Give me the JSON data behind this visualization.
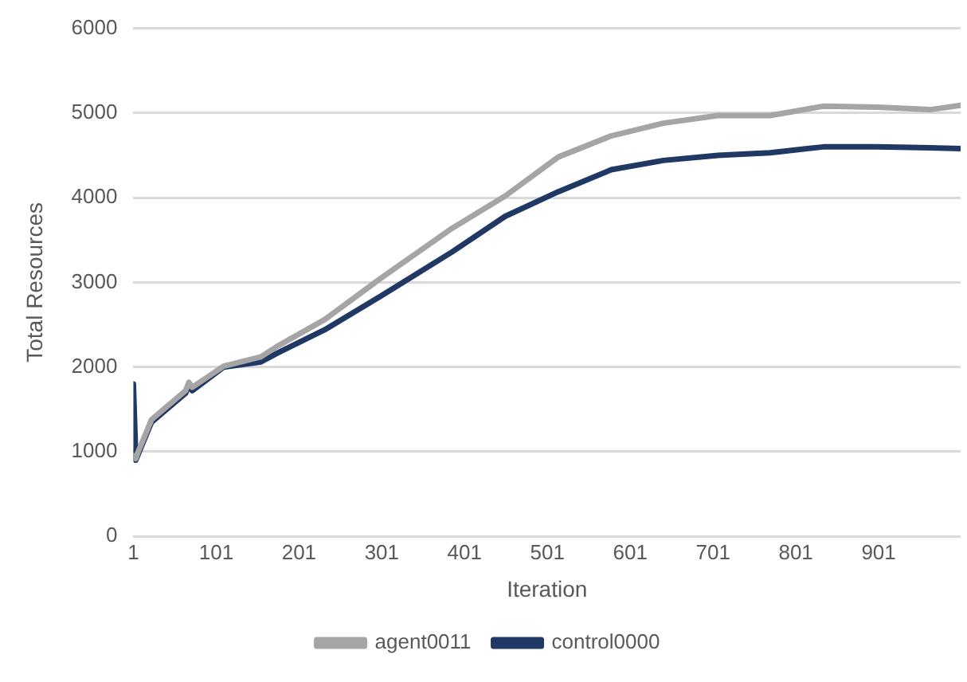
{
  "chart_data": {
    "type": "line",
    "xlabel": "Iteration",
    "ylabel": "Total Resources",
    "x": [
      1,
      4,
      6,
      23,
      64,
      68,
      72,
      110,
      155,
      174,
      232,
      300,
      386,
      450,
      514,
      578,
      641,
      707,
      770,
      834,
      899,
      963,
      1000
    ],
    "series": [
      {
        "name": "agent0011",
        "color": "#a5a5a5",
        "values": [
          950,
          920,
          980,
          1380,
          1720,
          1820,
          1760,
          2010,
          2120,
          2240,
          2560,
          3050,
          3640,
          4020,
          4480,
          4730,
          4880,
          4970,
          4970,
          5080,
          5070,
          5040,
          5090
        ]
      },
      {
        "name": "control0000",
        "color": "#203864",
        "values": [
          1800,
          900,
          950,
          1350,
          1690,
          1780,
          1720,
          2000,
          2060,
          2160,
          2440,
          2840,
          3360,
          3780,
          4070,
          4330,
          4440,
          4500,
          4530,
          4600,
          4600,
          4590,
          4580
        ]
      }
    ],
    "xlim": [
      1,
      1000
    ],
    "xticks": [
      1,
      101,
      201,
      301,
      401,
      501,
      601,
      701,
      801,
      901
    ],
    "ylim": [
      0,
      6000
    ],
    "yticks": [
      0,
      1000,
      2000,
      3000,
      4000,
      5000,
      6000
    ],
    "grid": "y",
    "legend": "bottom",
    "marker": "none",
    "line_style": "solid"
  }
}
